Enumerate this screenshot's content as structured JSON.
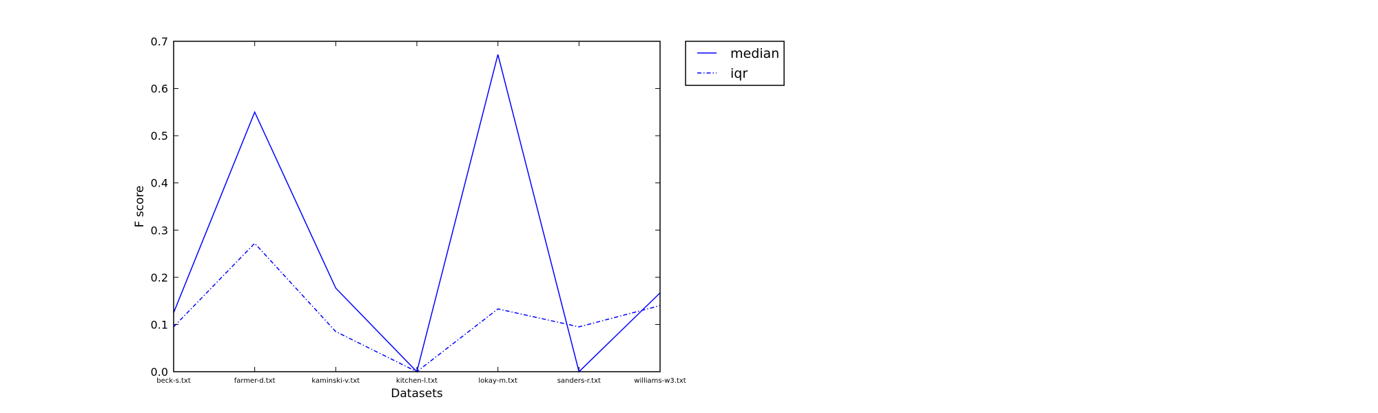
{
  "chart_data": {
    "type": "line",
    "title": "",
    "xlabel": "Datasets",
    "ylabel": "F score",
    "categories": [
      "beck-s.txt",
      "farmer-d.txt",
      "kaminski-v.txt",
      "kitchen-l.txt",
      "lokay-m.txt",
      "sanders-r.txt",
      "williams-w3.txt"
    ],
    "ylim": [
      0,
      0.7
    ],
    "yticks": [
      "0.0",
      "0.1",
      "0.2",
      "0.3",
      "0.4",
      "0.5",
      "0.6",
      "0.7"
    ],
    "grid": false,
    "legend_position": "outside-top-right",
    "series": [
      {
        "name": "median",
        "values": [
          0.125,
          0.55,
          0.177,
          0.0,
          0.672,
          0.0,
          0.167
        ],
        "color": "#0000ff",
        "style": "solid"
      },
      {
        "name": "iqr",
        "values": [
          0.095,
          0.272,
          0.085,
          0.0,
          0.133,
          0.095,
          0.14
        ],
        "color": "#0000ff",
        "style": "dashdot"
      }
    ]
  }
}
